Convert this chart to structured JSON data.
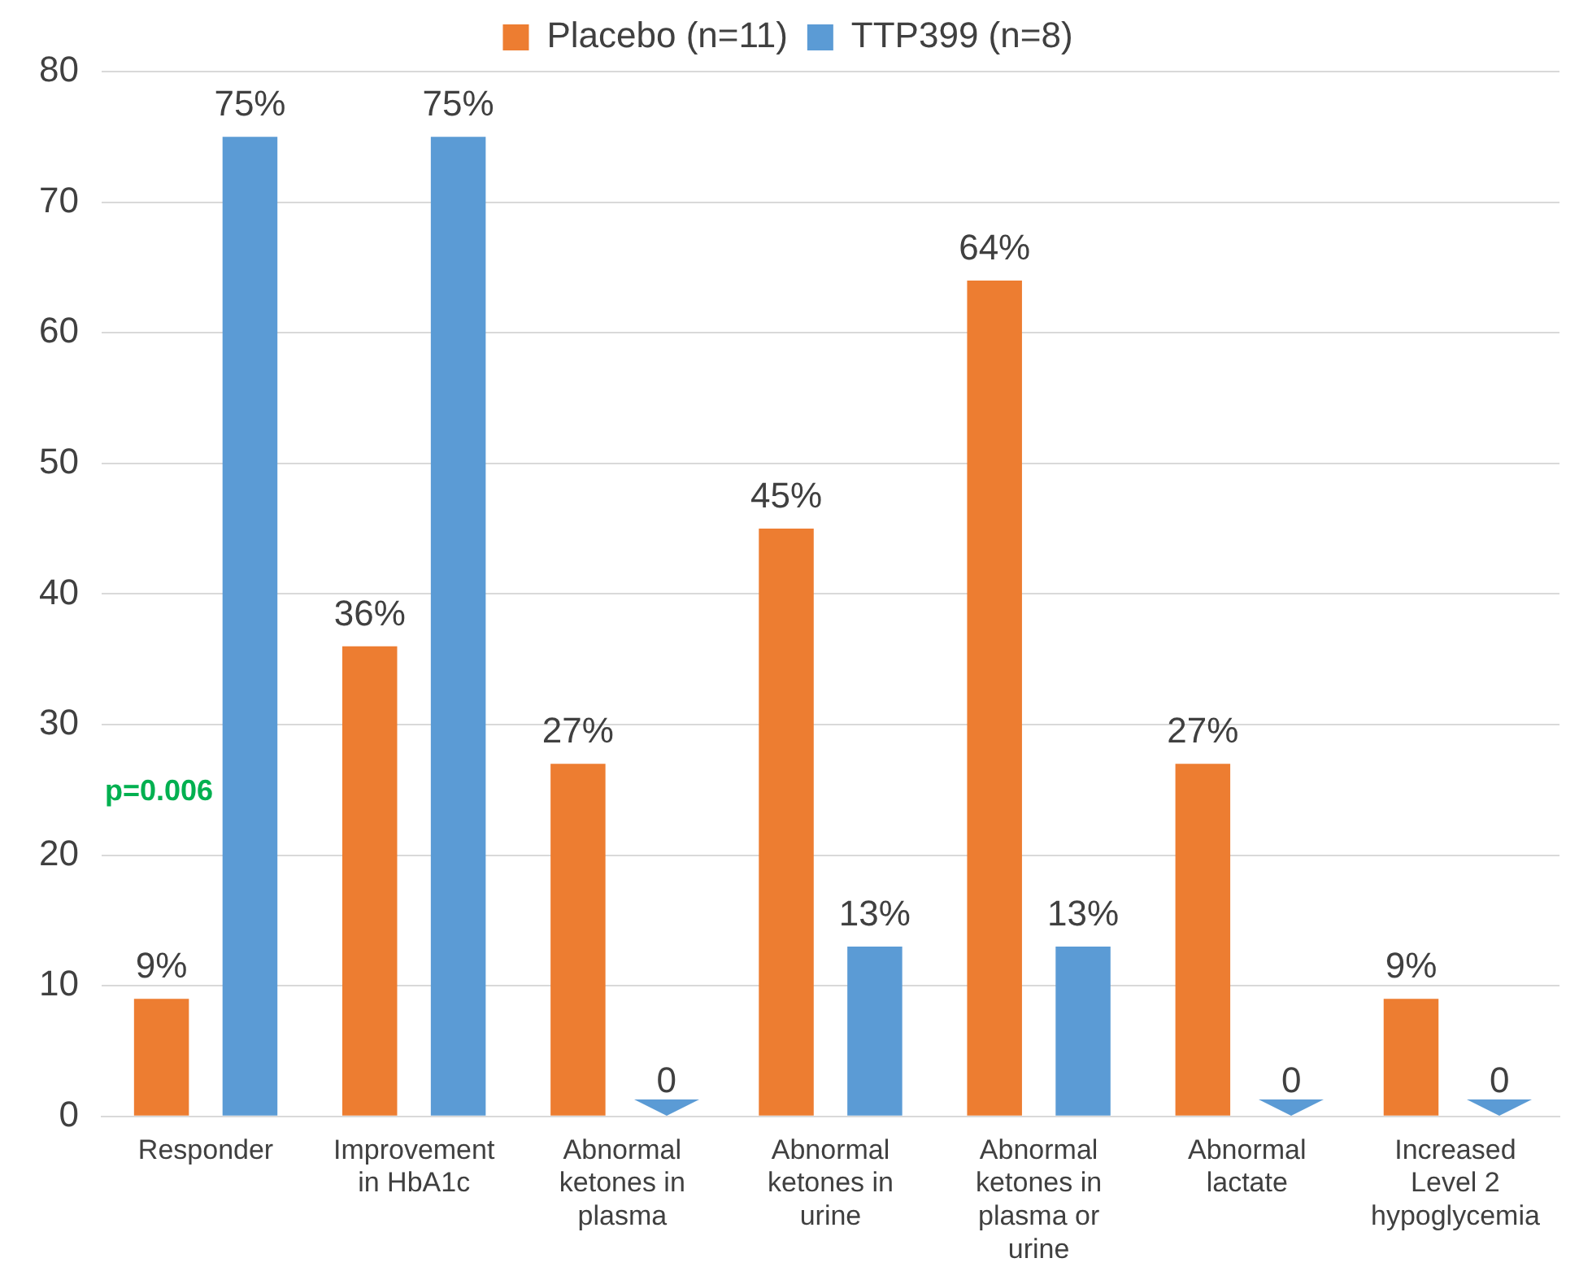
{
  "chart_data": {
    "type": "bar",
    "categories": [
      "Responder",
      "Improvement in HbA1c",
      "Abnormal ketones in plasma",
      "Abnormal ketones in urine",
      "Abnormal ketones in plasma or urine",
      "Abnormal lactate",
      "Increased Level 2 hypoglycemia"
    ],
    "series": [
      {
        "name": "Placebo (n=11)",
        "color": "#ed7d31",
        "values": [
          9,
          36,
          27,
          45,
          64,
          27,
          9
        ],
        "value_labels": [
          "9%",
          "36%",
          "27%",
          "45%",
          "64%",
          "27%",
          "9%"
        ]
      },
      {
        "name": "TTP399 (n=8)",
        "color": "#5b9bd5",
        "values": [
          75,
          75,
          0,
          13,
          13,
          0,
          0
        ],
        "value_labels": [
          "75%",
          "75%",
          "0",
          "13%",
          "13%",
          "0",
          "0"
        ]
      }
    ],
    "ylim": [
      0,
      80
    ],
    "yticks": [
      0,
      10,
      20,
      30,
      40,
      50,
      60,
      70,
      80
    ],
    "grid": "y",
    "legend": "top",
    "annotations": [
      "p=0.006"
    ]
  }
}
